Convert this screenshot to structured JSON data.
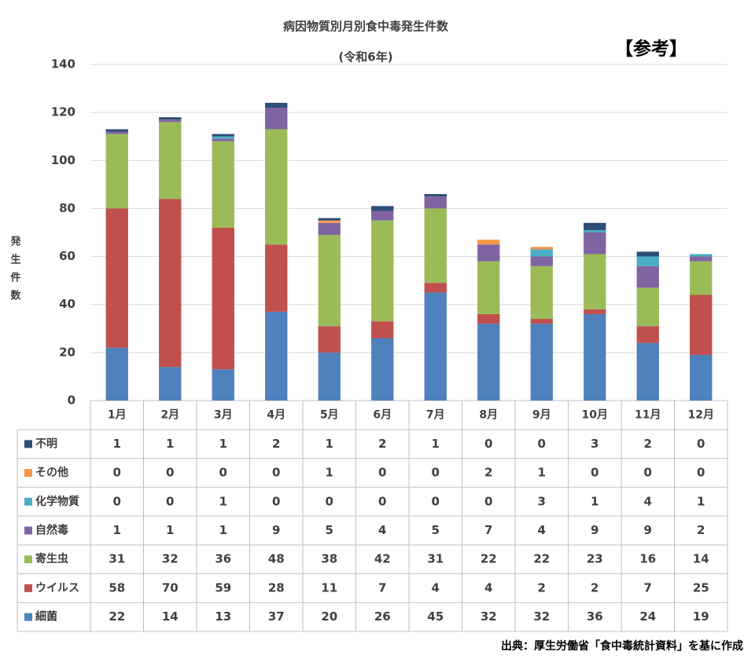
{
  "chart_data": {
    "type": "bar",
    "stacked": true,
    "title": "病因物質別月別食中毒発生件数",
    "subtitle": "(令和6年)",
    "annotation": "【参考】",
    "y_label": "発生件数",
    "source": "出典：厚生労働省「食中毒統計資料」を基に作成",
    "categories": [
      "1月",
      "2月",
      "3月",
      "4月",
      "5月",
      "6月",
      "7月",
      "8月",
      "9月",
      "10月",
      "11月",
      "12月"
    ],
    "series": [
      {
        "name": "細菌",
        "color": "#4f81bd",
        "values": [
          22,
          14,
          13,
          37,
          20,
          26,
          45,
          32,
          32,
          36,
          24,
          19
        ]
      },
      {
        "name": "ウイルス",
        "color": "#c0504d",
        "values": [
          58,
          70,
          59,
          28,
          11,
          7,
          4,
          4,
          2,
          2,
          7,
          25
        ]
      },
      {
        "name": "寄生虫",
        "color": "#9bbb59",
        "values": [
          31,
          32,
          36,
          48,
          38,
          42,
          31,
          22,
          22,
          23,
          16,
          14
        ]
      },
      {
        "name": "自然毒",
        "color": "#8064a2",
        "values": [
          1,
          1,
          1,
          9,
          5,
          4,
          5,
          7,
          4,
          9,
          9,
          2
        ]
      },
      {
        "name": "化学物質",
        "color": "#4bacc6",
        "values": [
          0,
          0,
          1,
          0,
          0,
          0,
          0,
          0,
          3,
          1,
          4,
          1
        ]
      },
      {
        "name": "その他",
        "color": "#f79646",
        "values": [
          0,
          0,
          0,
          0,
          1,
          0,
          0,
          2,
          1,
          0,
          0,
          0
        ]
      },
      {
        "name": "不明",
        "color": "#2c4d75",
        "values": [
          1,
          1,
          1,
          2,
          1,
          2,
          1,
          0,
          0,
          3,
          2,
          0
        ]
      }
    ],
    "ylim": [
      0,
      140
    ],
    "yticks": [
      0,
      20,
      40,
      60,
      80,
      100,
      120,
      140
    ],
    "grid": true
  }
}
